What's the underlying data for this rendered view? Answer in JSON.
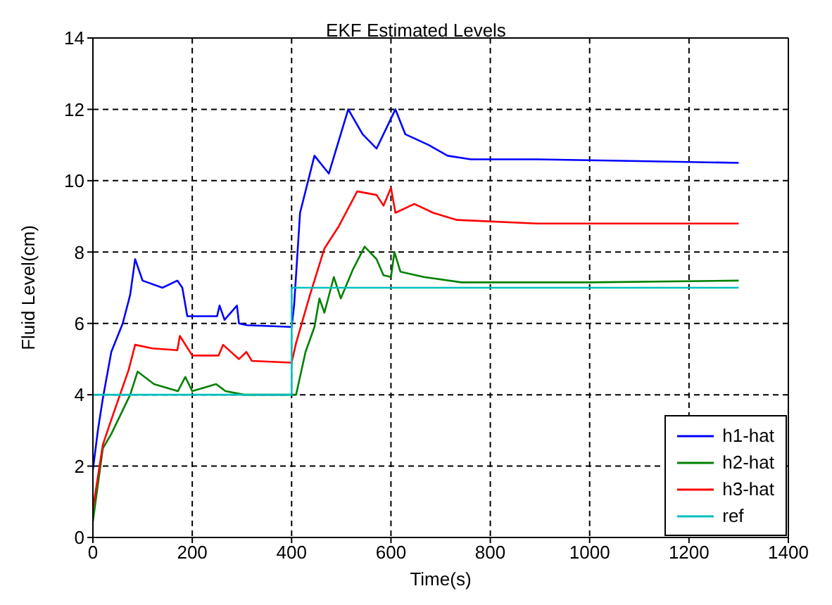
{
  "chart_data": {
    "type": "line",
    "title": "EKF Estimated Levels",
    "xlabel": "Time(s)",
    "ylabel": "Fluid Level(cm)",
    "xlim": [
      0,
      1400
    ],
    "xticks": [
      0,
      200,
      400,
      600,
      800,
      1000,
      1200,
      1400
    ],
    "ylim": [
      0,
      14
    ],
    "yticks": [
      0,
      2,
      4,
      6,
      8,
      10,
      12,
      14
    ],
    "grid": true,
    "legend": "bottom right",
    "marker": "none",
    "line_style": "solid",
    "series": [
      {
        "name": "h1-hat",
        "color": "#0000ff",
        "x": [
          0,
          10,
          20,
          37,
          60,
          75,
          85,
          100,
          140,
          170,
          180,
          190,
          250,
          255,
          265,
          290,
          294,
          310,
          400,
          405,
          417,
          446,
          475,
          514,
          543,
          571,
          609,
          629,
          676,
          714,
          761,
          894,
          1100,
          1300
        ],
        "values": [
          1.9,
          3.0,
          3.9,
          5.2,
          6.0,
          6.8,
          7.8,
          7.2,
          7.0,
          7.2,
          7.0,
          6.2,
          6.2,
          6.5,
          6.1,
          6.5,
          6.0,
          5.95,
          5.9,
          6.5,
          9.1,
          10.7,
          10.2,
          12.0,
          11.3,
          10.9,
          12.0,
          11.3,
          11.0,
          10.7,
          10.6,
          10.6,
          10.55,
          10.5
        ]
      },
      {
        "name": "h2-hat",
        "color": "#008000",
        "x": [
          0,
          20,
          37,
          75,
          90,
          123,
          171,
          186,
          200,
          248,
          267,
          305,
          400,
          409,
          428,
          446,
          456,
          466,
          485,
          499,
          523,
          547,
          571,
          585,
          600,
          607,
          619,
          666,
          742,
          1000,
          1300
        ],
        "values": [
          0.45,
          2.5,
          2.9,
          4.0,
          4.65,
          4.3,
          4.1,
          4.5,
          4.1,
          4.3,
          4.1,
          4.0,
          4.0,
          4.0,
          5.2,
          5.9,
          6.7,
          6.3,
          7.3,
          6.7,
          7.5,
          8.15,
          7.8,
          7.35,
          7.3,
          8.0,
          7.45,
          7.3,
          7.15,
          7.15,
          7.2
        ]
      },
      {
        "name": "h3-hat",
        "color": "#ff0000",
        "x": [
          0,
          20,
          37,
          72,
          85,
          120,
          170,
          175,
          200,
          253,
          262,
          294,
          309,
          320,
          400,
          409,
          437,
          466,
          494,
          532,
          571,
          585,
          600,
          609,
          647,
          685,
          733,
          894,
          1100,
          1300
        ],
        "values": [
          0.8,
          2.6,
          3.3,
          4.7,
          5.4,
          5.3,
          5.25,
          5.65,
          5.1,
          5.1,
          5.4,
          5.0,
          5.2,
          4.95,
          4.9,
          5.45,
          6.8,
          8.1,
          8.7,
          9.7,
          9.6,
          9.3,
          9.8,
          9.1,
          9.35,
          9.1,
          8.9,
          8.8,
          8.8,
          8.8
        ]
      },
      {
        "name": "ref",
        "color": "#00bfbf",
        "x": [
          0,
          400,
          400,
          1300
        ],
        "values": [
          4,
          4,
          7,
          7
        ]
      }
    ]
  }
}
